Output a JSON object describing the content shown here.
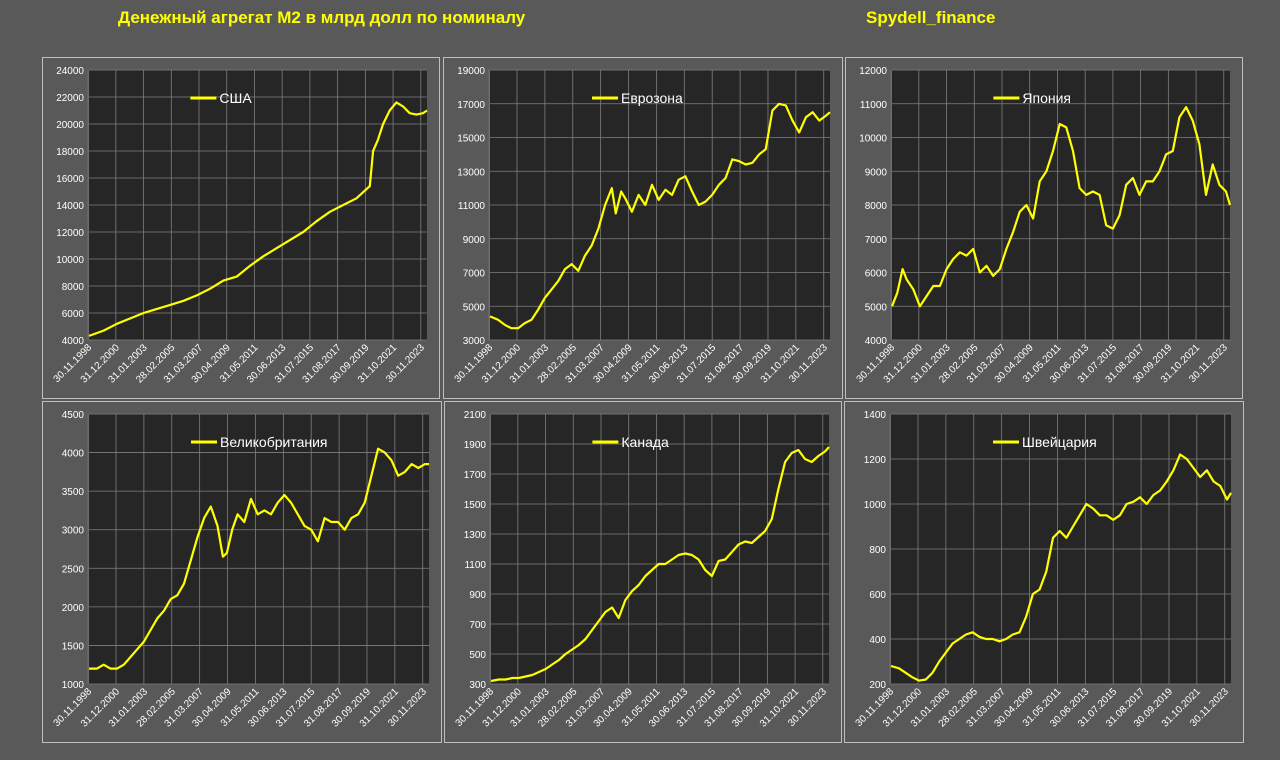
{
  "header": {
    "title": "Денежный агрегат М2 в млрд долл по номиналу",
    "brand": "Spydell_finance"
  },
  "colors": {
    "line": "#ffff00",
    "plot_bg": "#262626",
    "grid": "#7f7f7f",
    "text": "#ffffff"
  },
  "x_tick_labels": [
    "30.11.1998",
    "31.12.2000",
    "31.01.2003",
    "28.02.2005",
    "31.03.2007",
    "30.04.2009",
    "31.05.2011",
    "30.06.2013",
    "31.07.2015",
    "31.08.2017",
    "30.09.2019",
    "31.10.2021",
    "30.11.2023"
  ],
  "chart_data": [
    {
      "type": "line",
      "legend": "США",
      "legend_position": "top-center",
      "ylim": [
        4000,
        24000
      ],
      "yticks": [
        4000,
        6000,
        8000,
        10000,
        12000,
        14000,
        16000,
        18000,
        20000,
        22000,
        24000
      ],
      "x": [
        1998.9,
        2000,
        2001,
        2002,
        2003,
        2004,
        2005,
        2006,
        2007,
        2008,
        2009,
        2010,
        2011,
        2012,
        2013,
        2014,
        2015,
        2016,
        2017,
        2018,
        2019,
        2020,
        2020.25,
        2020.6,
        2021,
        2021.5,
        2022,
        2022.5,
        2023,
        2023.5,
        2024,
        2024.3
      ],
      "values": [
        4300,
        4700,
        5200,
        5600,
        6000,
        6300,
        6600,
        6900,
        7300,
        7800,
        8400,
        8700,
        9500,
        10200,
        10800,
        11400,
        12000,
        12800,
        13500,
        14000,
        14500,
        15400,
        18000,
        18800,
        20000,
        21000,
        21600,
        21300,
        20800,
        20700,
        20800,
        21000
      ]
    },
    {
      "type": "line",
      "legend": "Еврозона",
      "legend_position": "top-center",
      "ylim": [
        3000,
        19000
      ],
      "yticks": [
        3000,
        5000,
        7000,
        9000,
        11000,
        13000,
        15000,
        17000,
        19000
      ],
      "x": [
        1998.9,
        1999.5,
        2000,
        2000.5,
        2001,
        2001.5,
        2002,
        2002.5,
        2003,
        2003.5,
        2004,
        2004.5,
        2005,
        2005.5,
        2006,
        2006.5,
        2007,
        2007.5,
        2008,
        2008.3,
        2008.7,
        2009,
        2009.5,
        2010,
        2010.5,
        2011,
        2011.5,
        2012,
        2012.5,
        2013,
        2013.5,
        2014,
        2014.5,
        2015,
        2015.5,
        2016,
        2016.5,
        2017,
        2017.5,
        2018,
        2018.5,
        2019,
        2019.5,
        2020,
        2020.5,
        2021,
        2021.5,
        2022,
        2022.5,
        2023,
        2023.5,
        2024,
        2024.3
      ],
      "values": [
        4400,
        4200,
        3900,
        3700,
        3700,
        4000,
        4200,
        4800,
        5500,
        6000,
        6500,
        7200,
        7500,
        7100,
        8000,
        8600,
        9600,
        11000,
        12000,
        10500,
        11800,
        11400,
        10600,
        11600,
        11000,
        12200,
        11300,
        11900,
        11600,
        12500,
        12700,
        11800,
        11000,
        11200,
        11600,
        12200,
        12600,
        13700,
        13600,
        13400,
        13500,
        14000,
        14300,
        16600,
        17000,
        16900,
        16000,
        15300,
        16200,
        16500,
        16000,
        16300,
        16500
      ]
    },
    {
      "type": "line",
      "legend": "Япония",
      "legend_position": "top-center",
      "ylim": [
        4000,
        12000
      ],
      "yticks": [
        4000,
        5000,
        6000,
        7000,
        8000,
        9000,
        10000,
        11000,
        12000
      ],
      "x": [
        1998.9,
        1999.3,
        1999.7,
        2000,
        2000.5,
        2001,
        2001.5,
        2002,
        2002.5,
        2003,
        2003.5,
        2004,
        2004.5,
        2005,
        2005.5,
        2006,
        2006.5,
        2007,
        2007.5,
        2008,
        2008.5,
        2009,
        2009.5,
        2010,
        2010.5,
        2011,
        2011.5,
        2012,
        2012.5,
        2013,
        2013.5,
        2014,
        2014.5,
        2015,
        2015.5,
        2016,
        2016.5,
        2017,
        2017.5,
        2018,
        2018.5,
        2019,
        2019.5,
        2020,
        2020.5,
        2021,
        2021.5,
        2022,
        2022.5,
        2023,
        2023.5,
        2024,
        2024.3
      ],
      "values": [
        5000,
        5400,
        6100,
        5800,
        5500,
        5000,
        5300,
        5600,
        5600,
        6100,
        6400,
        6600,
        6500,
        6700,
        6000,
        6200,
        5900,
        6100,
        6700,
        7200,
        7800,
        8000,
        7600,
        8700,
        9000,
        9600,
        10400,
        10300,
        9600,
        8500,
        8300,
        8400,
        8300,
        7400,
        7300,
        7700,
        8600,
        8800,
        8300,
        8700,
        8700,
        9000,
        9500,
        9600,
        10600,
        10900,
        10500,
        9800,
        8300,
        9200,
        8600,
        8400,
        8000
      ]
    },
    {
      "type": "line",
      "legend": "Великобритания",
      "legend_position": "top-center",
      "ylim": [
        1000,
        4500
      ],
      "yticks": [
        1000,
        1500,
        2000,
        2500,
        3000,
        3500,
        4000,
        4500
      ],
      "x": [
        1998.9,
        1999.5,
        2000,
        2000.5,
        2001,
        2001.5,
        2002,
        2002.5,
        2003,
        2003.5,
        2004,
        2004.5,
        2005,
        2005.5,
        2006,
        2006.5,
        2007,
        2007.5,
        2008,
        2008.5,
        2008.9,
        2009.2,
        2009.6,
        2010,
        2010.5,
        2011,
        2011.5,
        2012,
        2012.5,
        2013,
        2013.5,
        2014,
        2014.5,
        2015,
        2015.5,
        2016,
        2016.5,
        2017,
        2017.5,
        2018,
        2018.5,
        2019,
        2019.5,
        2020,
        2020.5,
        2021,
        2021.5,
        2022,
        2022.5,
        2023,
        2023.5,
        2024,
        2024.3
      ],
      "values": [
        1200,
        1200,
        1250,
        1200,
        1200,
        1250,
        1350,
        1450,
        1550,
        1700,
        1850,
        1950,
        2100,
        2150,
        2300,
        2600,
        2900,
        3150,
        3300,
        3050,
        2650,
        2700,
        3000,
        3200,
        3100,
        3400,
        3200,
        3250,
        3200,
        3350,
        3450,
        3350,
        3200,
        3050,
        3000,
        2850,
        3150,
        3100,
        3100,
        3000,
        3150,
        3200,
        3350,
        3700,
        4050,
        4000,
        3900,
        3700,
        3750,
        3850,
        3800,
        3850,
        3850
      ]
    },
    {
      "type": "line",
      "legend": "Канада",
      "legend_position": "top-center",
      "ylim": [
        300,
        2100
      ],
      "yticks": [
        300,
        500,
        700,
        900,
        1100,
        1300,
        1500,
        1700,
        1900,
        2100
      ],
      "x": [
        1998.9,
        1999.5,
        2000,
        2000.5,
        2001,
        2001.5,
        2002,
        2002.5,
        2003,
        2003.5,
        2004,
        2004.5,
        2005,
        2005.5,
        2006,
        2006.5,
        2007,
        2007.5,
        2008,
        2008.5,
        2009,
        2009.5,
        2010,
        2010.5,
        2011,
        2011.5,
        2012,
        2012.5,
        2013,
        2013.5,
        2014,
        2014.5,
        2015,
        2015.5,
        2016,
        2016.5,
        2017,
        2017.5,
        2018,
        2018.5,
        2019,
        2019.5,
        2020,
        2020.5,
        2021,
        2021.5,
        2022,
        2022.5,
        2023,
        2023.5,
        2024,
        2024.3
      ],
      "values": [
        320,
        330,
        330,
        340,
        340,
        350,
        360,
        380,
        400,
        430,
        460,
        500,
        530,
        560,
        600,
        660,
        720,
        780,
        810,
        740,
        860,
        920,
        960,
        1020,
        1060,
        1100,
        1100,
        1130,
        1160,
        1170,
        1160,
        1130,
        1060,
        1020,
        1120,
        1130,
        1180,
        1230,
        1250,
        1240,
        1280,
        1320,
        1400,
        1600,
        1780,
        1840,
        1860,
        1800,
        1780,
        1820,
        1850,
        1880
      ]
    },
    {
      "type": "line",
      "legend": "Швейцария",
      "legend_position": "top-center",
      "ylim": [
        200,
        1400
      ],
      "yticks": [
        200,
        400,
        600,
        800,
        1000,
        1200,
        1400
      ],
      "x": [
        1998.9,
        1999.5,
        2000,
        2000.5,
        2001,
        2001.5,
        2002,
        2002.5,
        2003,
        2003.5,
        2004,
        2004.5,
        2005,
        2005.5,
        2006,
        2006.5,
        2007,
        2007.5,
        2008,
        2008.5,
        2009,
        2009.5,
        2010,
        2010.5,
        2011,
        2011.5,
        2012,
        2012.5,
        2013,
        2013.5,
        2014,
        2014.5,
        2015,
        2015.5,
        2016,
        2016.5,
        2017,
        2017.5,
        2018,
        2018.5,
        2019,
        2019.5,
        2020,
        2020.5,
        2021,
        2021.5,
        2022,
        2022.5,
        2023,
        2023.5,
        2024,
        2024.3
      ],
      "values": [
        280,
        270,
        250,
        230,
        215,
        220,
        250,
        300,
        340,
        380,
        400,
        420,
        430,
        410,
        400,
        400,
        390,
        400,
        420,
        430,
        500,
        600,
        620,
        700,
        850,
        880,
        850,
        900,
        950,
        1000,
        980,
        950,
        950,
        930,
        950,
        1000,
        1010,
        1030,
        1000,
        1040,
        1060,
        1100,
        1150,
        1220,
        1200,
        1160,
        1120,
        1150,
        1100,
        1080,
        1020,
        1050
      ]
    }
  ]
}
